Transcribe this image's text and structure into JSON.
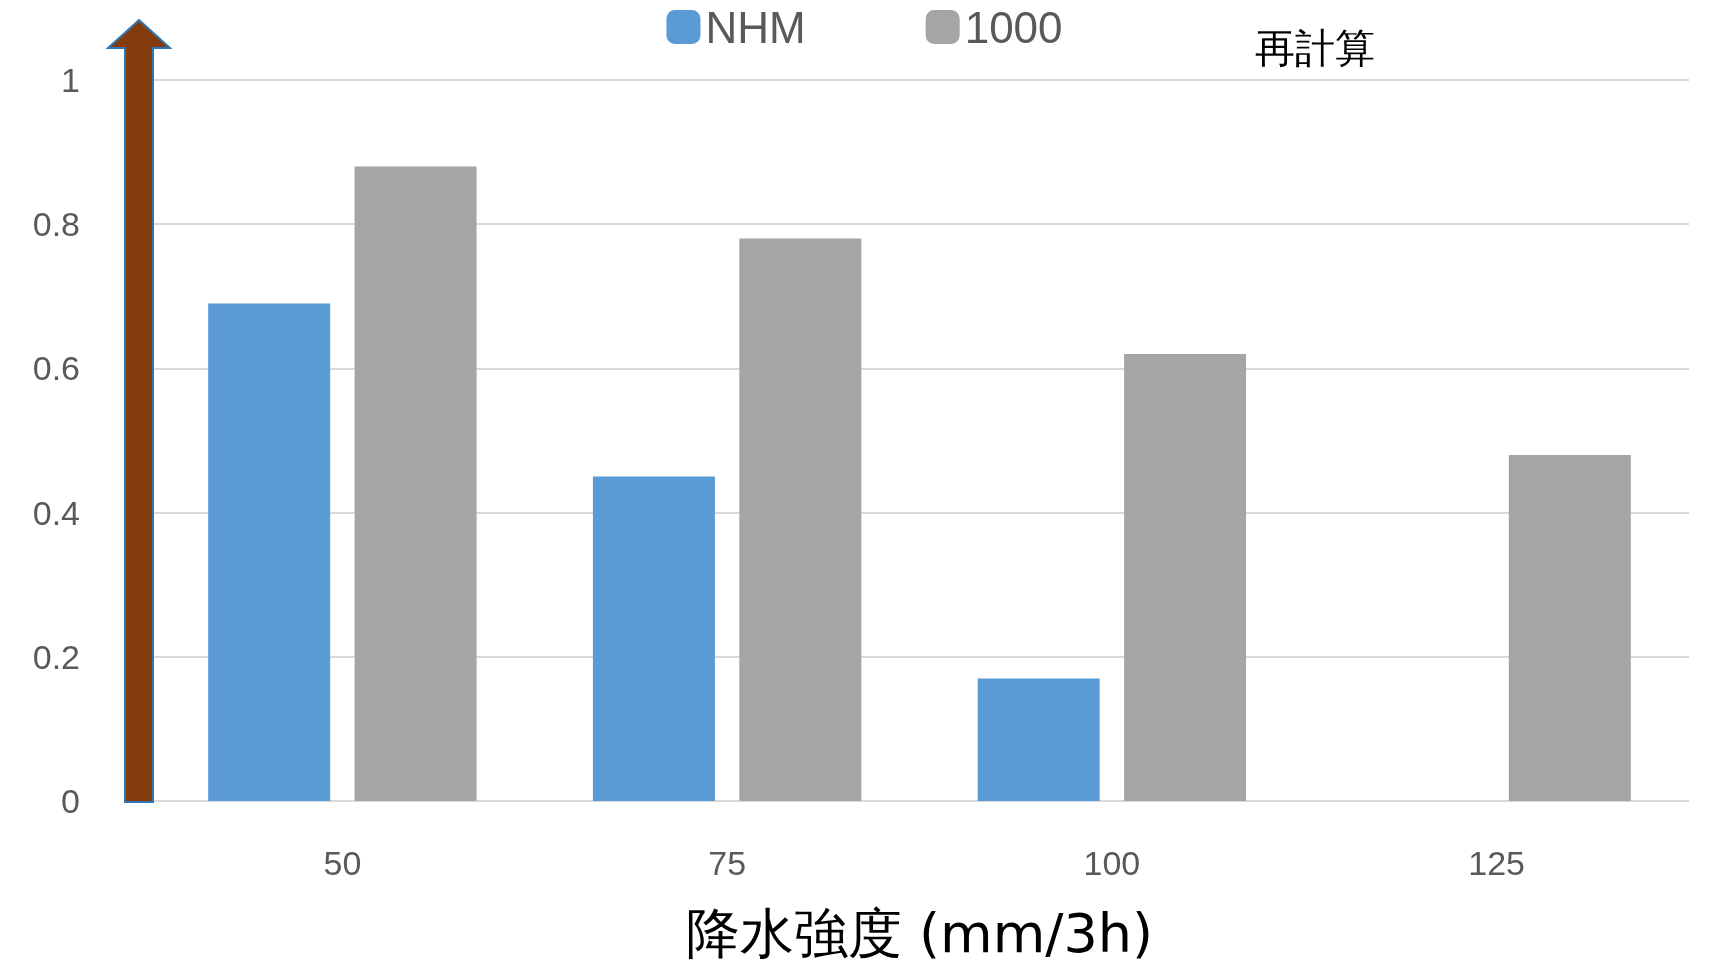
{
  "chart_data": {
    "type": "bar",
    "xlabel": "降水強度 (mm/3h)",
    "categories": [
      "50",
      "75",
      "100",
      "125"
    ],
    "series": [
      {
        "name": "NHM",
        "color": "#5b9bd5",
        "values": [
          0.69,
          0.45,
          0.17,
          null
        ]
      },
      {
        "name": "1000",
        "color": "#a5a5a5",
        "values": [
          0.88,
          0.78,
          0.62,
          0.48
        ]
      }
    ],
    "ylim": [
      0,
      1
    ],
    "yticks": [
      0,
      0.2,
      0.4,
      0.6,
      0.8,
      1
    ],
    "grid": "y",
    "legend": "top",
    "annotations": [
      "再計算"
    ]
  }
}
